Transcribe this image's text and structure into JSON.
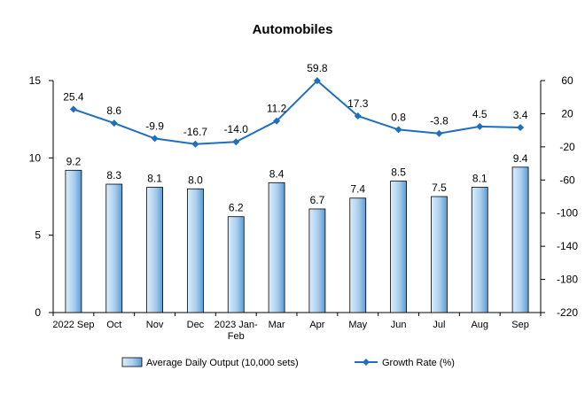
{
  "chart_data": {
    "type": "bar",
    "title": "Automobiles",
    "categories": [
      "2022 Sep",
      "Oct",
      "Nov",
      "Dec",
      "2023 Jan-\nFeb",
      "Mar",
      "Apr",
      "May",
      "Jun",
      "Jul",
      "Aug",
      "Sep"
    ],
    "series": [
      {
        "name": "Average Daily Output (10,000 sets)",
        "type": "bar",
        "axis": "left",
        "values": [
          9.2,
          8.3,
          8.1,
          8.0,
          6.2,
          8.4,
          6.7,
          7.4,
          8.5,
          7.5,
          8.1,
          9.4
        ],
        "labels": [
          "9.2",
          "8.3",
          "8.1",
          "8.0",
          "6.2",
          "8.4",
          "6.7",
          "7.4",
          "8.5",
          "7.5",
          "8.1",
          "9.4"
        ]
      },
      {
        "name": "Growth Rate (%)",
        "type": "line",
        "axis": "right",
        "values": [
          25.4,
          8.6,
          -9.9,
          -16.7,
          -14.0,
          11.2,
          59.8,
          17.3,
          0.8,
          -3.8,
          4.5,
          3.4
        ],
        "labels": [
          "25.4",
          "8.6",
          "-9.9",
          "-16.7",
          "-14.0",
          "11.2",
          "59.8",
          "17.3",
          "0.8",
          "-3.8",
          "4.5",
          "3.4"
        ]
      }
    ],
    "y_left": {
      "min": 0,
      "max": 15,
      "ticks": [
        0,
        5,
        10,
        15
      ]
    },
    "y_right": {
      "min": -220,
      "max": 60,
      "ticks": [
        60,
        20,
        -20,
        -60,
        -100,
        -140,
        -180,
        -220
      ]
    },
    "legend_position": "bottom",
    "grid": false,
    "colors": {
      "bar_fill_light": "#dceefb",
      "bar_fill_dark": "#5b9bd5",
      "bar_stroke": "#000000",
      "line": "#1f6fbf"
    }
  }
}
